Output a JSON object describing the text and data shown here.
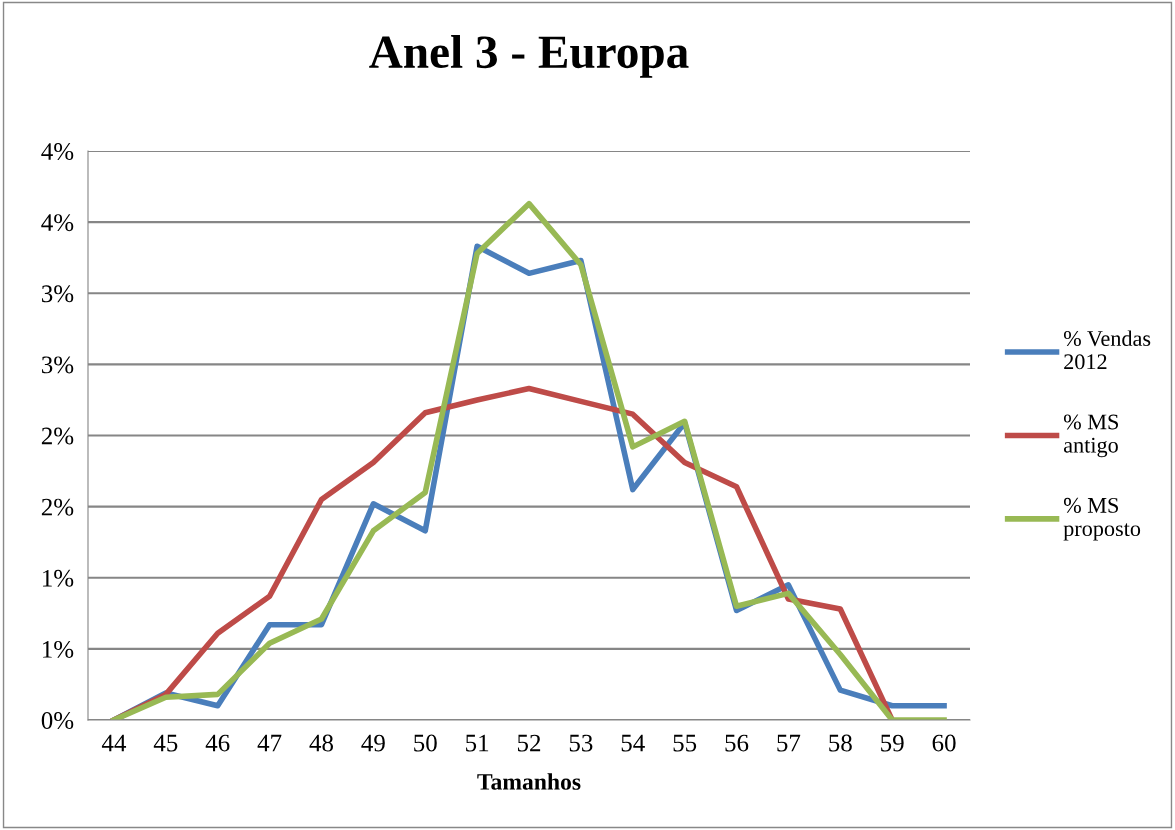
{
  "chart_data": {
    "type": "line",
    "title": "Anel 3 - Europa",
    "xlabel": "Tamanhos",
    "categories": [
      "44",
      "45",
      "46",
      "47",
      "48",
      "49",
      "50",
      "51",
      "52",
      "53",
      "54",
      "55",
      "56",
      "57",
      "58",
      "59",
      "60"
    ],
    "series": [
      {
        "name": "% Vendas 2012",
        "color": "#4a7ebb",
        "values": [
          0,
          0.19,
          0.1,
          0.67,
          0.67,
          1.52,
          1.33,
          3.33,
          3.14,
          3.23,
          1.62,
          2.09,
          0.77,
          0.95,
          0.21,
          0.1,
          0.1
        ]
      },
      {
        "name": "% MS antigo",
        "color": "#be4b48",
        "values": [
          0,
          0.18,
          0.61,
          0.87,
          1.55,
          1.81,
          2.16,
          2.25,
          2.33,
          2.24,
          2.15,
          1.81,
          1.64,
          0.85,
          0.78,
          0,
          null
        ]
      },
      {
        "name": "% MS proposto",
        "color": "#98b954",
        "values": [
          0,
          0.16,
          0.18,
          0.54,
          0.71,
          1.33,
          1.6,
          3.28,
          3.63,
          3.2,
          1.92,
          2.1,
          0.8,
          0.89,
          0.46,
          0,
          0
        ]
      }
    ],
    "ylim": [
      0,
      4
    ],
    "yticks": [
      {
        "value": 0,
        "label": "0%"
      },
      {
        "value": 0.5,
        "label": "1%"
      },
      {
        "value": 1,
        "label": "1%"
      },
      {
        "value": 1.5,
        "label": "2%"
      },
      {
        "value": 2,
        "label": "2%"
      },
      {
        "value": 2.5,
        "label": "3%"
      },
      {
        "value": 3,
        "label": "3%"
      },
      {
        "value": 3.5,
        "label": "4%"
      },
      {
        "value": 4,
        "label": "4%"
      }
    ],
    "grid": "y",
    "legend": "right",
    "marker": "none",
    "line_style": "solid"
  }
}
